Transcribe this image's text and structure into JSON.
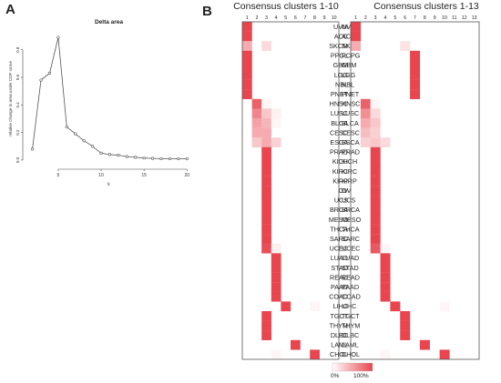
{
  "panels": {
    "a_label": "A",
    "b_label": "B"
  },
  "chart_data": [
    {
      "type": "line",
      "title": "Delta area",
      "xlabel": "k",
      "ylabel": "relative change in area under CDF curve",
      "x": [
        2,
        3,
        4,
        5,
        6,
        7,
        8,
        9,
        10,
        11,
        12,
        13,
        14,
        15,
        16,
        17,
        18,
        19,
        20
      ],
      "y": [
        0.08,
        0.58,
        0.63,
        0.89,
        0.24,
        0.19,
        0.14,
        0.1,
        0.05,
        0.04,
        0.035,
        0.025,
        0.02,
        0.015,
        0.012,
        0.01,
        0.01,
        0.01,
        0.01
      ],
      "xlim": [
        1.3,
        20.5
      ],
      "ylim": [
        -0.04,
        0.93
      ],
      "xticks": [
        5,
        10,
        15,
        20
      ],
      "yticks": [
        0.0,
        0.2,
        0.4,
        0.6,
        0.8
      ],
      "ytick_labels": [
        "0.0",
        "0.2",
        "0.4",
        "0.6",
        "0.8"
      ]
    },
    {
      "type": "heatmap",
      "title": "Consensus clusters 1-10",
      "columns": [
        "1",
        "2",
        "3",
        "4",
        "5",
        "6",
        "7",
        "8",
        "9",
        "10"
      ],
      "rows": [
        "UVM",
        "ACC",
        "SKCM",
        "PCPG",
        "GBM",
        "LGG",
        "NBL",
        "PNET",
        "HNSC",
        "LUSC",
        "BLCA",
        "CESC",
        "ESCA",
        "PRAD",
        "KICH",
        "KIRC",
        "KIRP",
        "OV",
        "UCS",
        "BRCA",
        "MESO",
        "THCA",
        "SARC",
        "UCEC",
        "LUAD",
        "STAD",
        "READ",
        "PAAD",
        "COAD",
        "LIHC",
        "TGCT",
        "THYM",
        "DLBC",
        "LAML",
        "CHOL"
      ],
      "values": [
        [
          1,
          0,
          0,
          0,
          0,
          0,
          0,
          0,
          0,
          0
        ],
        [
          1,
          0,
          0,
          0,
          0,
          0,
          0,
          0,
          0,
          0
        ],
        [
          0.45,
          0,
          0.2,
          0,
          0,
          0,
          0,
          0,
          0,
          0
        ],
        [
          1,
          0,
          0,
          0,
          0,
          0,
          0,
          0,
          0,
          0
        ],
        [
          1,
          0,
          0,
          0,
          0,
          0,
          0,
          0,
          0,
          0
        ],
        [
          1,
          0,
          0,
          0,
          0,
          0,
          0,
          0,
          0,
          0
        ],
        [
          1,
          0,
          0,
          0,
          0,
          0,
          0,
          0,
          0,
          0
        ],
        [
          1,
          0,
          0,
          0,
          0,
          0,
          0,
          0,
          0,
          0
        ],
        [
          0,
          0.85,
          0.05,
          0,
          0,
          0,
          0,
          0,
          0,
          0
        ],
        [
          0,
          0.65,
          0.3,
          0.08,
          0,
          0,
          0,
          0,
          0,
          0
        ],
        [
          0,
          0.5,
          0.4,
          0.05,
          0,
          0,
          0,
          0,
          0,
          0
        ],
        [
          0,
          0.45,
          0.45,
          0,
          0,
          0,
          0,
          0,
          0,
          0
        ],
        [
          0,
          0.3,
          0.45,
          0.25,
          0,
          0,
          0,
          0,
          0,
          0
        ],
        [
          0,
          0,
          1,
          0,
          0,
          0,
          0,
          0,
          0,
          0
        ],
        [
          0,
          0,
          1,
          0,
          0,
          0,
          0,
          0,
          0,
          0
        ],
        [
          0,
          0,
          1,
          0,
          0,
          0,
          0,
          0,
          0,
          0
        ],
        [
          0,
          0,
          1,
          0,
          0,
          0,
          0,
          0,
          0,
          0
        ],
        [
          0,
          0,
          1,
          0,
          0,
          0,
          0,
          0,
          0,
          0
        ],
        [
          0,
          0,
          1,
          0,
          0,
          0,
          0,
          0,
          0,
          0
        ],
        [
          0,
          0,
          1,
          0,
          0,
          0,
          0,
          0,
          0,
          0
        ],
        [
          0,
          0,
          1,
          0,
          0,
          0,
          0,
          0,
          0,
          0
        ],
        [
          0,
          0,
          1,
          0,
          0,
          0,
          0,
          0,
          0,
          0
        ],
        [
          0,
          0,
          1,
          0,
          0,
          0,
          0,
          0,
          0,
          0
        ],
        [
          0,
          0,
          0.95,
          0.08,
          0,
          0,
          0,
          0,
          0,
          0
        ],
        [
          0,
          0,
          0,
          1,
          0,
          0,
          0,
          0,
          0,
          0
        ],
        [
          0,
          0,
          0,
          1,
          0,
          0,
          0,
          0,
          0,
          0
        ],
        [
          0,
          0,
          0,
          1,
          0,
          0,
          0,
          0,
          0,
          0
        ],
        [
          0,
          0,
          0,
          1,
          0,
          0,
          0,
          0,
          0,
          0
        ],
        [
          0,
          0,
          0,
          1,
          0,
          0,
          0,
          0,
          0,
          0
        ],
        [
          0,
          0,
          0,
          0,
          1,
          0,
          0,
          0.05,
          0,
          0
        ],
        [
          0,
          0,
          1,
          0,
          0,
          0,
          0,
          0,
          0,
          0
        ],
        [
          0,
          0,
          1,
          0,
          0,
          0,
          0,
          0,
          0,
          0
        ],
        [
          0,
          0,
          1,
          0,
          0,
          0,
          0,
          0,
          0,
          0
        ],
        [
          0,
          0,
          0,
          0,
          0,
          1,
          0,
          0,
          0,
          0
        ],
        [
          0,
          0,
          0,
          0.05,
          0,
          0,
          0,
          1,
          0,
          0
        ]
      ]
    },
    {
      "type": "heatmap",
      "title": "Consensus clusters 1-13",
      "columns": [
        "1",
        "2",
        "3",
        "4",
        "5",
        "6",
        "7",
        "8",
        "9",
        "10",
        "11",
        "12",
        "13"
      ],
      "rows": [
        "UVM",
        "ACC",
        "SKCM",
        "PPGL",
        "GBM",
        "LGG",
        "NBL",
        "PNET",
        "HNSC",
        "LUSC",
        "BLCA",
        "CESC",
        "ESCA",
        "PRAD",
        "KICH",
        "KIRC",
        "KIRP",
        "OV",
        "UCS",
        "BRCA",
        "MESO",
        "THCA",
        "SARC",
        "UCEC",
        "LUAD",
        "STAD",
        "READ",
        "PAAD",
        "COAD",
        "LIHC",
        "TGCT",
        "THYM",
        "DLBC",
        "LAML",
        "CHOL"
      ],
      "values": [
        [
          1,
          0,
          0,
          0,
          0,
          0,
          0,
          0,
          0,
          0,
          0,
          0,
          0
        ],
        [
          1,
          0,
          0,
          0,
          0,
          0,
          0,
          0,
          0,
          0,
          0,
          0,
          0
        ],
        [
          0.45,
          0,
          0,
          0,
          0,
          0.15,
          0,
          0,
          0,
          0,
          0,
          0,
          0
        ],
        [
          0,
          0,
          0,
          0,
          0,
          0,
          1,
          0,
          0,
          0,
          0,
          0,
          0
        ],
        [
          0,
          0,
          0,
          0,
          0,
          0,
          1,
          0,
          0,
          0,
          0,
          0,
          0
        ],
        [
          0,
          0,
          0,
          0,
          0,
          0,
          1,
          0,
          0,
          0,
          0,
          0,
          0
        ],
        [
          0,
          0,
          0,
          0,
          0,
          0,
          1,
          0,
          0,
          0,
          0,
          0,
          0
        ],
        [
          0,
          0,
          0,
          0,
          0,
          0,
          1,
          0,
          0,
          0,
          0,
          0,
          0
        ],
        [
          0,
          0.85,
          0.05,
          0,
          0,
          0,
          0,
          0,
          0,
          0,
          0,
          0,
          0
        ],
        [
          0,
          0.6,
          0.2,
          0,
          0,
          0,
          0,
          0,
          0,
          0,
          0,
          0,
          0
        ],
        [
          0,
          0.45,
          0.3,
          0,
          0,
          0,
          0,
          0,
          0,
          0,
          0,
          0,
          0
        ],
        [
          0,
          0.35,
          0.25,
          0,
          0,
          0,
          0,
          0,
          0,
          0,
          0,
          0,
          0
        ],
        [
          0,
          0.25,
          0.3,
          0.2,
          0,
          0,
          0,
          0,
          0,
          0,
          0,
          0,
          0
        ],
        [
          0,
          0,
          1,
          0,
          0,
          0,
          0,
          0,
          0,
          0,
          0,
          0,
          0
        ],
        [
          0,
          0,
          1,
          0,
          0,
          0,
          0,
          0,
          0,
          0,
          0,
          0,
          0
        ],
        [
          0,
          0,
          1,
          0,
          0,
          0,
          0,
          0,
          0,
          0,
          0,
          0,
          0
        ],
        [
          0,
          0,
          1,
          0,
          0,
          0,
          0,
          0,
          0,
          0,
          0,
          0,
          0
        ],
        [
          0,
          0,
          1,
          0,
          0,
          0,
          0,
          0,
          0,
          0,
          0,
          0,
          0
        ],
        [
          0,
          0,
          1,
          0,
          0,
          0,
          0,
          0,
          0,
          0,
          0,
          0,
          0
        ],
        [
          0,
          0,
          1,
          0,
          0,
          0,
          0,
          0,
          0,
          0,
          0,
          0,
          0
        ],
        [
          0,
          0,
          1,
          0,
          0,
          0,
          0,
          0,
          0,
          0,
          0,
          0,
          0
        ],
        [
          0,
          0,
          1,
          0,
          0,
          0,
          0,
          0,
          0,
          0,
          0,
          0,
          0
        ],
        [
          0,
          0,
          1,
          0,
          0,
          0,
          0,
          0,
          0,
          0,
          0,
          0,
          0
        ],
        [
          0,
          0,
          0.9,
          0.05,
          0,
          0,
          0,
          0,
          0,
          0,
          0,
          0,
          0
        ],
        [
          0,
          0,
          0,
          1,
          0,
          0,
          0,
          0,
          0,
          0,
          0,
          0,
          0
        ],
        [
          0,
          0,
          0,
          1,
          0,
          0,
          0,
          0,
          0,
          0,
          0,
          0,
          0
        ],
        [
          0,
          0,
          0,
          1,
          0,
          0,
          0,
          0,
          0,
          0,
          0,
          0,
          0
        ],
        [
          0,
          0,
          0,
          1,
          0,
          0,
          0,
          0,
          0,
          0,
          0,
          0,
          0
        ],
        [
          0,
          0,
          0,
          1,
          0,
          0,
          0,
          0,
          0,
          0,
          0,
          0,
          0
        ],
        [
          0,
          0,
          0,
          0,
          1,
          0,
          0,
          0,
          0,
          0.05,
          0,
          0,
          0
        ],
        [
          0,
          0,
          0,
          0,
          0,
          1,
          0,
          0,
          0,
          0,
          0,
          0,
          0
        ],
        [
          0,
          0,
          0,
          0,
          0,
          1,
          0,
          0,
          0,
          0,
          0,
          0,
          0
        ],
        [
          0,
          0,
          0,
          0,
          0,
          1,
          0,
          0,
          0,
          0,
          0,
          0,
          0
        ],
        [
          0,
          0,
          0,
          0,
          0,
          0,
          0,
          1,
          0,
          0,
          0,
          0,
          0
        ],
        [
          0,
          0,
          0,
          0.05,
          0,
          0,
          0,
          0,
          0,
          1,
          0,
          0,
          0
        ]
      ]
    }
  ],
  "legend": {
    "min_label": "0%",
    "max_label": "100%",
    "low_color": "#ffffff",
    "high_color": "#e8454f"
  },
  "colors": {
    "line": "#555555",
    "cell_max": "#e8454f",
    "axis": "#444444"
  }
}
